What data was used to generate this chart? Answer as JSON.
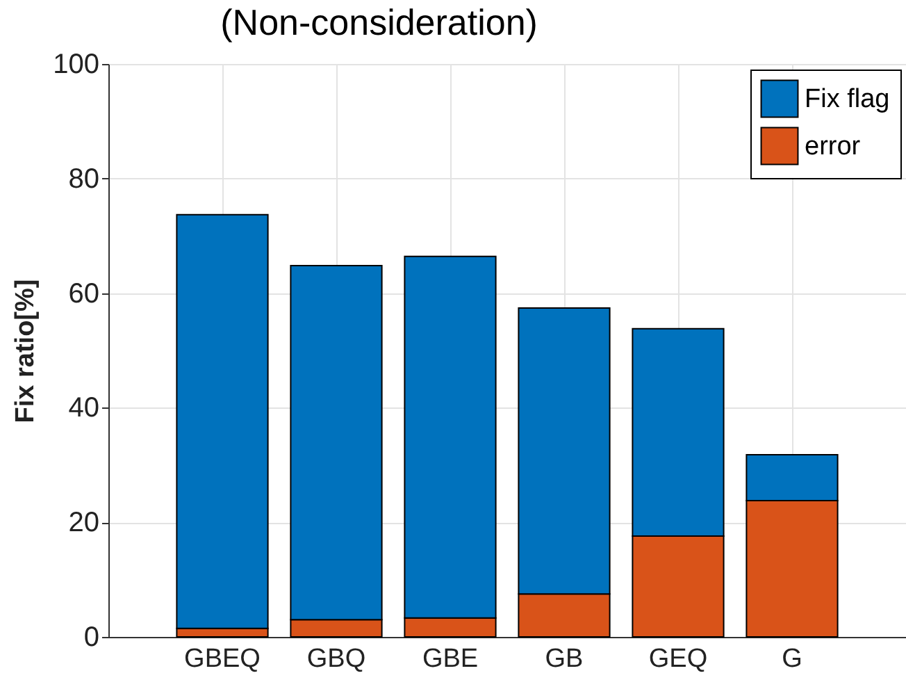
{
  "chart_data": {
    "type": "bar",
    "title": "(Non-consideration)",
    "ylabel": "Fix ratio[%]",
    "categories": [
      "GBEQ",
      "GBQ",
      "GBE",
      "GB",
      "GEQ",
      "G"
    ],
    "stacked": true,
    "series": [
      {
        "name": "error",
        "color": "#d95319",
        "values": [
          1.5,
          3.0,
          3.3,
          7.5,
          17.6,
          23.8
        ]
      },
      {
        "name": "Fix flag",
        "color": "#0072bd",
        "values": [
          72.2,
          61.8,
          63.1,
          49.9,
          36.2,
          8.0
        ]
      }
    ],
    "ylim": [
      0,
      100
    ],
    "yticks": [
      0,
      20,
      40,
      60,
      80,
      100
    ],
    "grid": true,
    "legend": "top right"
  }
}
